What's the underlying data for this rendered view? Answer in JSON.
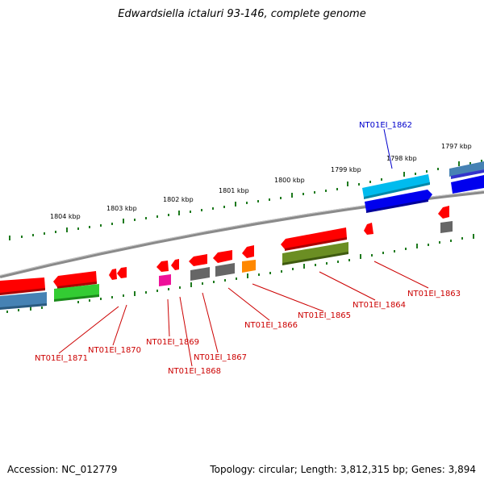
{
  "title": "Edwardsiella ictaluri 93-146, complete genome",
  "footer": {
    "accession": "Accession: NC_012779",
    "summary": "Topology: circular; Length: 3,812,315 bp; Genes: 3,894"
  },
  "scale": {
    "unit": "kbp",
    "ticks": [
      {
        "label": "1804 kbp"
      },
      {
        "label": "1803 kbp"
      },
      {
        "label": "1802 kbp"
      },
      {
        "label": "1801 kbp"
      },
      {
        "label": "1800 kbp"
      },
      {
        "label": "1799 kbp"
      },
      {
        "label": "1798 kbp"
      },
      {
        "label": "1797 kbp"
      }
    ]
  },
  "gene_labels": [
    {
      "text": "NT01EI_1862",
      "color": "#0000cc"
    },
    {
      "text": "NT01EI_1863",
      "color": "#cc0000"
    },
    {
      "text": "NT01EI_1864",
      "color": "#cc0000"
    },
    {
      "text": "NT01EI_1865",
      "color": "#cc0000"
    },
    {
      "text": "NT01EI_1866",
      "color": "#cc0000"
    },
    {
      "text": "NT01EI_1867",
      "color": "#cc0000"
    },
    {
      "text": "NT01EI_1868",
      "color": "#cc0000"
    },
    {
      "text": "NT01EI_1869",
      "color": "#cc0000"
    },
    {
      "text": "NT01EI_1870",
      "color": "#cc0000"
    },
    {
      "text": "NT01EI_1871",
      "color": "#cc0000"
    }
  ],
  "colors": {
    "backbone": "#8a8a8a",
    "tick_green": "#1e7a1e",
    "cds_red": "#ff0000",
    "cds_blue": "#0000ee",
    "cds_lightblue": "#00bbee",
    "cds_steel": "#4682b4",
    "cds_green": "#33cc33",
    "cds_olive": "#6b8e23",
    "cds_gray": "#666666",
    "cds_magenta": "#ee1199",
    "cds_orange": "#ff8800"
  }
}
